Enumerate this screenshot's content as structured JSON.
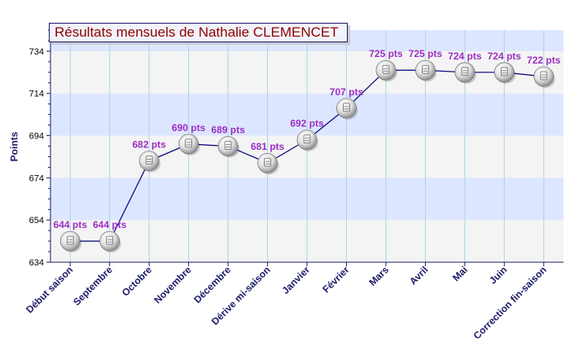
{
  "title": "Résultats mensuels de Nathalie CLEMENCET",
  "chart_data": {
    "type": "line",
    "title": "Résultats mensuels de Nathalie CLEMENCET",
    "xlabel": "",
    "ylabel": "Points",
    "categories": [
      "Début saison",
      "Septembre",
      "Octobre",
      "Novembre",
      "Décembre",
      "Dérive mi-saison",
      "Janvier",
      "Février",
      "Mars",
      "Avril",
      "Mai",
      "Juin",
      "Correction fin-saison"
    ],
    "series": [
      {
        "values": [
          644,
          644,
          682,
          690,
          689,
          681,
          692,
          707,
          725,
          725,
          724,
          724,
          722
        ],
        "labels": [
          "644 pts",
          "644 pts",
          "682 pts",
          "690 pts",
          "689 pts",
          "681 pts",
          "692 pts",
          "707 pts",
          "725 pts",
          "725 pts",
          "724 pts",
          "724 pts",
          "722 pts"
        ]
      }
    ],
    "yticks": [
      634,
      654,
      674,
      694,
      714,
      734
    ],
    "ylim": [
      634,
      744
    ],
    "grid": true,
    "legend": "none",
    "colors": {
      "band_light": "#f4f4f4",
      "band_blue": "#dde6ff",
      "line": "#00007a",
      "label": "#9b2fc3",
      "axis": "#1b1b6b",
      "vgrid": "#a9d3ea",
      "title": "#8b0000"
    }
  }
}
